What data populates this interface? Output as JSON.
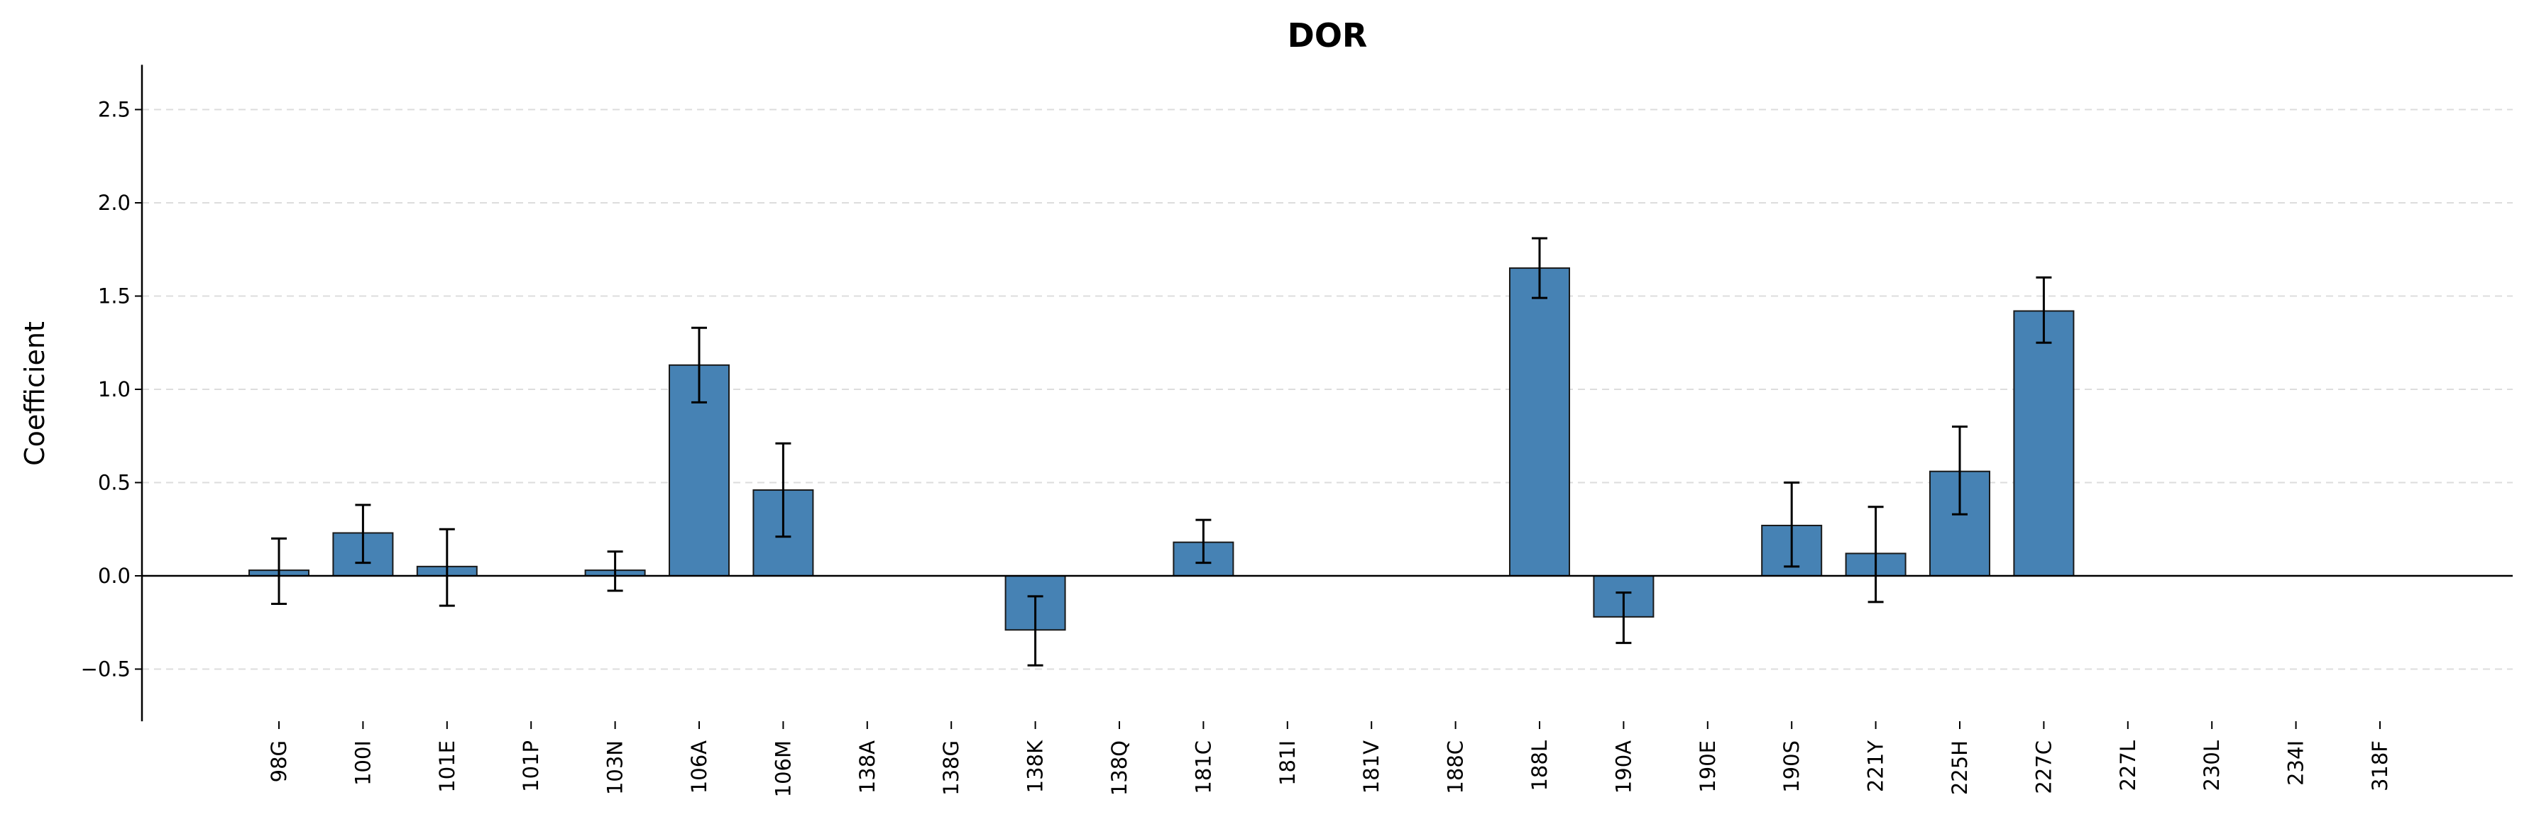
{
  "chart_data": {
    "type": "bar",
    "title": "DOR",
    "xlabel": "",
    "ylabel": "Coefficient",
    "ylim": [
      -0.78,
      2.74
    ],
    "yticks": [
      -0.5,
      0.0,
      0.5,
      1.0,
      1.5,
      2.0,
      2.5
    ],
    "ytick_labels": [
      "−0.5",
      "0.0",
      "0.5",
      "1.0",
      "1.5",
      "2.0",
      "2.5"
    ],
    "grid": "horizontal dashed",
    "legend": "none",
    "categories": [
      "98G",
      "100I",
      "101E",
      "101P",
      "103N",
      "106A",
      "106M",
      "138A",
      "138G",
      "138K",
      "138Q",
      "181C",
      "181I",
      "181V",
      "188C",
      "188L",
      "190A",
      "190E",
      "190S",
      "221Y",
      "225H",
      "227C",
      "227L",
      "230L",
      "234I",
      "318F"
    ],
    "values": [
      0.03,
      0.23,
      0.05,
      0.0,
      0.03,
      1.13,
      0.46,
      0.0,
      0.0,
      -0.29,
      0.0,
      0.18,
      0.0,
      0.0,
      0.0,
      1.65,
      -0.22,
      0.0,
      0.27,
      0.12,
      0.56,
      1.42,
      0.0,
      0.0,
      0.0,
      0.0
    ],
    "error_low": [
      -0.15,
      0.07,
      -0.16,
      null,
      -0.08,
      0.93,
      0.21,
      null,
      null,
      -0.48,
      null,
      0.07,
      null,
      null,
      null,
      1.49,
      -0.36,
      null,
      0.05,
      -0.14,
      0.33,
      1.25,
      null,
      null,
      null,
      null
    ],
    "error_high": [
      0.2,
      0.38,
      0.25,
      null,
      0.13,
      1.33,
      0.71,
      null,
      null,
      -0.11,
      null,
      0.3,
      null,
      null,
      null,
      1.81,
      -0.09,
      null,
      0.5,
      0.37,
      0.8,
      1.6,
      null,
      null,
      null,
      null
    ],
    "colors": {
      "bar": "#4682b4",
      "bar_edge": "#1a1a1a",
      "grid": "#dddddd",
      "axis": "#000000"
    }
  }
}
